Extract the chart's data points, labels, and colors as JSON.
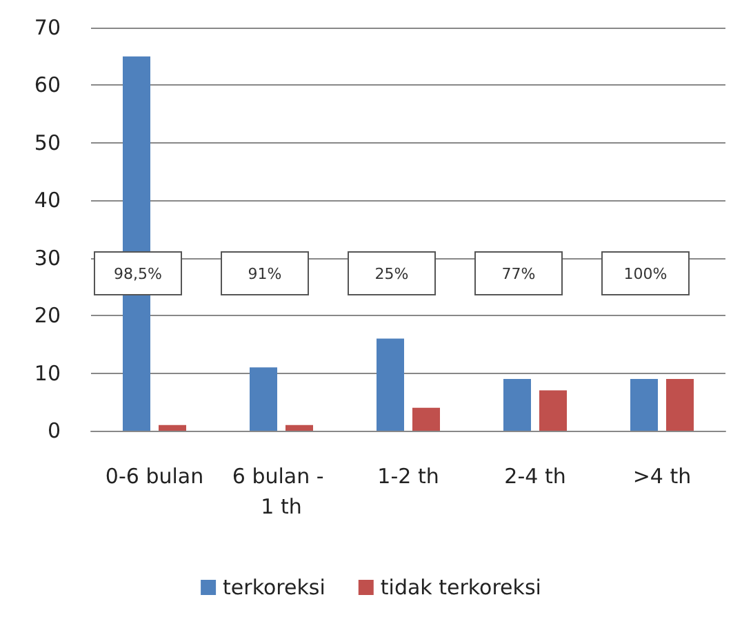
{
  "chart_data": {
    "type": "bar",
    "categories": [
      "0-6 bulan",
      "6 bulan - 1 th",
      "1-2 th",
      "2-4 th",
      ">4 th"
    ],
    "series": [
      {
        "name": "terkoreksi",
        "color": "#4f81bd",
        "values": [
          65,
          11,
          16,
          9,
          9
        ]
      },
      {
        "name": "tidak terkoreksi",
        "color": "#c0504d",
        "values": [
          1,
          1,
          4,
          7,
          9
        ]
      }
    ],
    "ylim": [
      0,
      70
    ],
    "yticks": [
      0,
      10,
      20,
      30,
      40,
      50,
      60,
      70
    ],
    "grid": "y",
    "legend": "bottom",
    "annotations": [
      "98,5%",
      "91%",
      "25%",
      "77%",
      "100%"
    ]
  }
}
